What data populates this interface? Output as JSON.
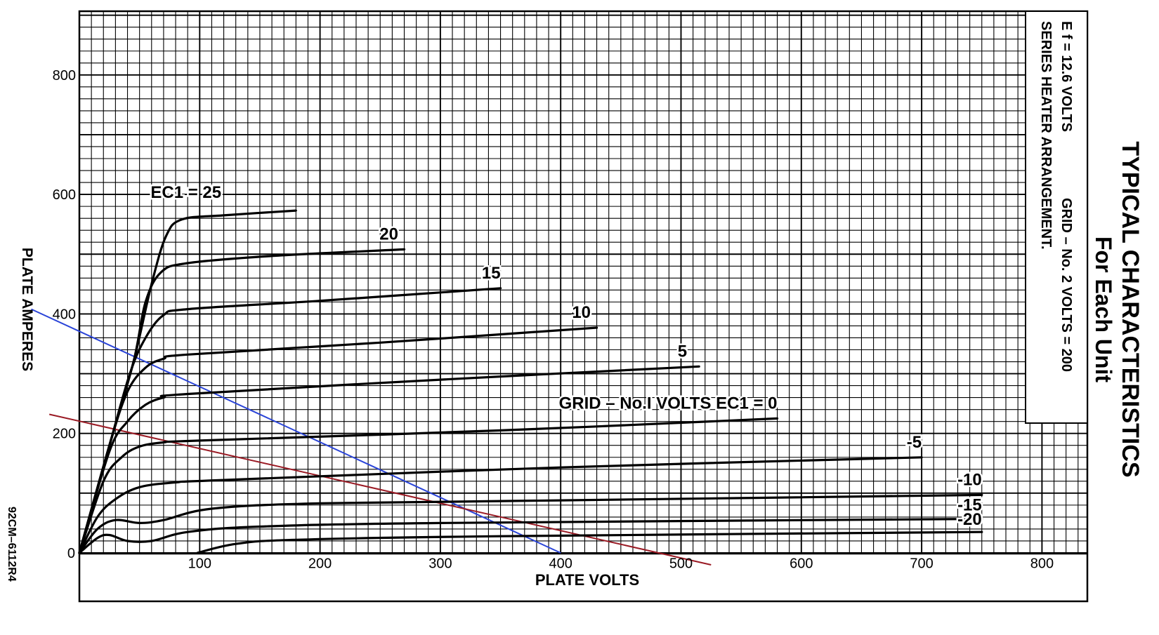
{
  "chart_data": {
    "type": "line",
    "title": "TYPICAL CHARACTERISTICS",
    "subtitle": "For Each Unit",
    "xlabel": "PLATE VOLTS",
    "ylabel": "PLATE AMPERES",
    "xlim": [
      0,
      850
    ],
    "ylim": [
      0,
      900
    ],
    "grid": true,
    "x_ticks": [
      "100",
      "200",
      "300",
      "400",
      "500",
      "600",
      "700",
      "800"
    ],
    "x_tick_values": [
      100,
      200,
      300,
      400,
      500,
      600,
      700,
      800
    ],
    "y_ticks": [
      "0",
      "200",
      "400",
      "600",
      "800"
    ],
    "y_tick_values": [
      0,
      200,
      400,
      600,
      800
    ],
    "conditions": {
      "line1": "E f = 12.6 VOLTS",
      "line1_right": "GRID – No. 2 VOLTS = 200",
      "line2": "SERIES HEATER ARRANGEMENT."
    },
    "drawing_number": "92CM–6112R4",
    "grid_note": "GRID – No.I VOLTS EC1 = 0",
    "series": [
      {
        "label": "EC1 = 25",
        "values": [
          [
            0,
            0
          ],
          [
            25,
            180
          ],
          [
            45,
            320
          ],
          [
            60,
            450
          ],
          [
            72,
            530
          ],
          [
            85,
            558
          ],
          [
            120,
            565
          ],
          [
            180,
            573
          ]
        ]
      },
      {
        "label": "20",
        "values": [
          [
            0,
            0
          ],
          [
            25,
            180
          ],
          [
            45,
            320
          ],
          [
            55,
            420
          ],
          [
            68,
            470
          ],
          [
            90,
            485
          ],
          [
            160,
            497
          ],
          [
            270,
            508
          ]
        ]
      },
      {
        "label": "15",
        "values": [
          [
            0,
            0
          ],
          [
            25,
            180
          ],
          [
            42,
            300
          ],
          [
            55,
            360
          ],
          [
            70,
            398
          ],
          [
            90,
            408
          ],
          [
            200,
            422
          ],
          [
            350,
            443
          ]
        ]
      },
      {
        "label": "10",
        "values": [
          [
            0,
            0
          ],
          [
            25,
            180
          ],
          [
            40,
            270
          ],
          [
            55,
            310
          ],
          [
            70,
            325
          ],
          [
            90,
            332
          ],
          [
            250,
            352
          ],
          [
            430,
            377
          ]
        ]
      },
      {
        "label": "5",
        "values": [
          [
            0,
            0
          ],
          [
            25,
            170
          ],
          [
            40,
            220
          ],
          [
            55,
            248
          ],
          [
            70,
            260
          ],
          [
            90,
            266
          ],
          [
            300,
            290
          ],
          [
            515,
            312
          ]
        ]
      },
      {
        "label": "GRID – No.I VOLTS EC1 = 0",
        "values": [
          [
            0,
            0
          ],
          [
            20,
            120
          ],
          [
            35,
            160
          ],
          [
            50,
            178
          ],
          [
            70,
            185
          ],
          [
            100,
            188
          ],
          [
            350,
            205
          ],
          [
            580,
            225
          ]
        ]
      },
      {
        "label": "-5",
        "values": [
          [
            0,
            0
          ],
          [
            15,
            60
          ],
          [
            30,
            90
          ],
          [
            50,
            110
          ],
          [
            80,
            118
          ],
          [
            120,
            122
          ],
          [
            400,
            143
          ],
          [
            700,
            160
          ]
        ]
      },
      {
        "label": "-10",
        "values": [
          [
            0,
            0
          ],
          [
            15,
            40
          ],
          [
            30,
            55
          ],
          [
            50,
            50
          ],
          [
            70,
            55
          ],
          [
            110,
            74
          ],
          [
            200,
            83
          ],
          [
            400,
            88
          ],
          [
            750,
            97
          ]
        ]
      },
      {
        "label": "-15",
        "values": [
          [
            0,
            0
          ],
          [
            15,
            25
          ],
          [
            25,
            30
          ],
          [
            40,
            20
          ],
          [
            60,
            20
          ],
          [
            90,
            35
          ],
          [
            150,
            44
          ],
          [
            300,
            50
          ],
          [
            750,
            57
          ]
        ]
      },
      {
        "label": "-20",
        "values": [
          [
            98,
            0
          ],
          [
            130,
            15
          ],
          [
            180,
            22
          ],
          [
            350,
            28
          ],
          [
            750,
            35
          ]
        ]
      }
    ],
    "load_lines": [
      {
        "color": "#2a44d8",
        "values": [
          [
            -40,
            408
          ],
          [
            400,
            0
          ]
        ]
      },
      {
        "color": "#9a1a24",
        "values": [
          [
            -25,
            232
          ],
          [
            525,
            -20
          ]
        ]
      }
    ]
  }
}
